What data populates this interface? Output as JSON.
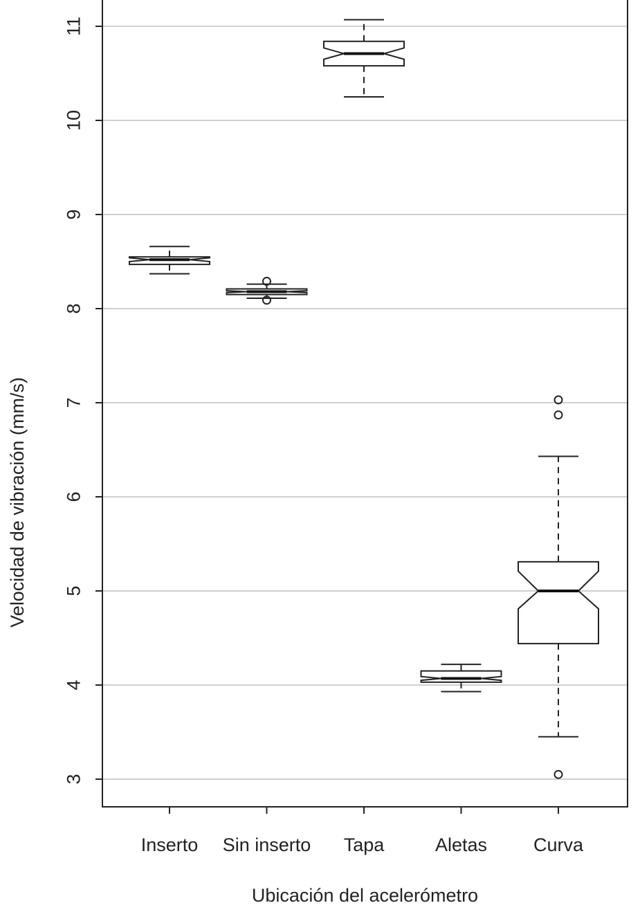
{
  "chart_data": {
    "type": "boxplot",
    "notched": true,
    "title": "",
    "xlabel": "Ubicación del acelerómetro",
    "ylabel": "Velocidad de vibración (mm/s)",
    "ylim": [
      2.7,
      11.3
    ],
    "yticks": [
      3,
      4,
      5,
      6,
      7,
      8,
      9,
      10,
      11
    ],
    "grid": "horizontal",
    "categories": [
      "Inserto",
      "Sin inserto",
      "Tapa",
      "Aletas",
      "Curva"
    ],
    "boxes": [
      {
        "name": "Inserto",
        "whisker_low": 8.37,
        "q1": 8.47,
        "median": 8.52,
        "q3": 8.55,
        "whisker_high": 8.66,
        "notch_low": 8.5,
        "notch_high": 8.54,
        "outliers": []
      },
      {
        "name": "Sin inserto",
        "whisker_low": 8.11,
        "q1": 8.15,
        "median": 8.18,
        "q3": 8.21,
        "whisker_high": 8.26,
        "notch_low": 8.17,
        "notch_high": 8.19,
        "outliers": [
          8.09,
          8.29
        ]
      },
      {
        "name": "Tapa",
        "whisker_low": 10.25,
        "q1": 10.58,
        "median": 10.71,
        "q3": 10.84,
        "whisker_high": 11.07,
        "notch_low": 10.65,
        "notch_high": 10.77,
        "outliers": []
      },
      {
        "name": "Aletas",
        "whisker_low": 3.93,
        "q1": 4.03,
        "median": 4.07,
        "q3": 4.15,
        "whisker_high": 4.22,
        "notch_low": 4.05,
        "notch_high": 4.09,
        "outliers": []
      },
      {
        "name": "Curva",
        "whisker_low": 3.45,
        "q1": 4.44,
        "median": 5.0,
        "q3": 5.31,
        "whisker_high": 6.43,
        "notch_low": 4.81,
        "notch_high": 5.21,
        "outliers": [
          3.05,
          6.87,
          7.03
        ]
      }
    ]
  }
}
